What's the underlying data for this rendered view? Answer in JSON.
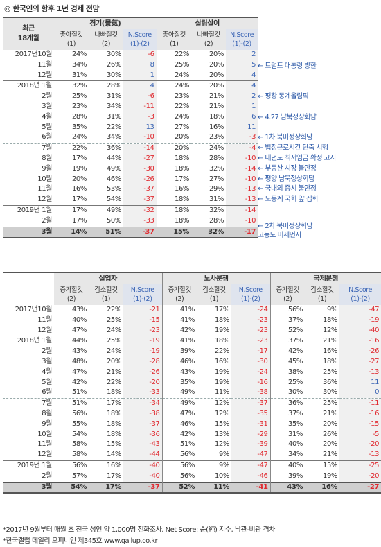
{
  "title": "◎ 한국인의 향후 1년 경제 전망",
  "top_table": {
    "corner": [
      "최근",
      "18개월"
    ],
    "groups": [
      "경기(景氣)",
      "살림살이"
    ],
    "subheads": [
      [
        "좋아질것",
        "(1)"
      ],
      [
        "나빠질것",
        "(2)"
      ],
      [
        "N.Score",
        "(1)-(2)"
      ],
      [
        "좋아질것",
        "(1)"
      ],
      [
        "나빠질것",
        "(2)"
      ],
      [
        "N.Score",
        "(1)-(2)"
      ]
    ],
    "rows": [
      {
        "label": "2017년10월",
        "v": [
          "24%",
          "30%",
          "-6",
          "22%",
          "20%",
          "2"
        ]
      },
      {
        "label": "11월",
        "v": [
          "34%",
          "26%",
          "8",
          "25%",
          "20%",
          "5"
        ]
      },
      {
        "label": "12월",
        "v": [
          "31%",
          "30%",
          "1",
          "24%",
          "20%",
          "4"
        ]
      },
      {
        "label": "2018년 1월",
        "v": [
          "32%",
          "28%",
          "4",
          "24%",
          "20%",
          "4"
        ]
      },
      {
        "label": "2월",
        "v": [
          "25%",
          "31%",
          "-6",
          "23%",
          "21%",
          "2"
        ]
      },
      {
        "label": "3월",
        "v": [
          "23%",
          "34%",
          "-11",
          "22%",
          "21%",
          "1"
        ]
      },
      {
        "label": "4월",
        "v": [
          "28%",
          "31%",
          "-3",
          "24%",
          "18%",
          "6"
        ]
      },
      {
        "label": "5월",
        "v": [
          "35%",
          "22%",
          "13",
          "27%",
          "16%",
          "11"
        ]
      },
      {
        "label": "6월",
        "v": [
          "24%",
          "34%",
          "-10",
          "20%",
          "23%",
          "-3"
        ]
      },
      {
        "label": "7월",
        "v": [
          "22%",
          "36%",
          "-14",
          "20%",
          "24%",
          "-4"
        ]
      },
      {
        "label": "8월",
        "v": [
          "17%",
          "44%",
          "-27",
          "18%",
          "28%",
          "-10"
        ]
      },
      {
        "label": "9월",
        "v": [
          "19%",
          "49%",
          "-30",
          "18%",
          "32%",
          "-14"
        ]
      },
      {
        "label": "10월",
        "v": [
          "20%",
          "46%",
          "-26",
          "17%",
          "27%",
          "-10"
        ]
      },
      {
        "label": "11월",
        "v": [
          "16%",
          "53%",
          "-37",
          "16%",
          "29%",
          "-13"
        ]
      },
      {
        "label": "12월",
        "v": [
          "17%",
          "54%",
          "-37",
          "18%",
          "31%",
          "-13"
        ]
      },
      {
        "label": "2019년 1월",
        "v": [
          "17%",
          "49%",
          "-32",
          "18%",
          "32%",
          "-14"
        ]
      },
      {
        "label": "2월",
        "v": [
          "17%",
          "50%",
          "-33",
          "18%",
          "28%",
          "-10"
        ]
      },
      {
        "label": "3월",
        "v": [
          "14%",
          "51%",
          "-37",
          "15%",
          "32%",
          "-17"
        ]
      }
    ]
  },
  "annotations": [
    {
      "text": "← 트럼프 대통령 방한",
      "row": 1,
      "cls": ""
    },
    {
      "text": "← 평창 동계올림픽",
      "row": 4,
      "cls": ""
    },
    {
      "text": "← 4.27 남북정상회담",
      "row": 6,
      "cls": ""
    },
    {
      "text": "← 1차 북미정상회담",
      "row": 8,
      "cls": ""
    },
    {
      "text": "← 법정근로시간 단축 시행",
      "row": 9,
      "cls": ""
    },
    {
      "text": "← 내년도 최저임금 확정 고시",
      "row": 10,
      "cls": ""
    },
    {
      "text": "← 부동산 시장 불안정",
      "row": 11,
      "cls": ""
    },
    {
      "text": "← 평양 남북정상회담",
      "row": 12,
      "cls": ""
    },
    {
      "text": "← 국내외 증시 불안정",
      "row": 13,
      "cls": ""
    },
    {
      "text": "← 노동계 국회 앞 집회",
      "row": 14,
      "cls": ""
    },
    {
      "text": "← 2차 북미정상회담",
      "row": 16.6,
      "cls": ""
    },
    {
      "text": "고농도 미세먼지",
      "row": 17.5,
      "cls": ""
    }
  ],
  "bottom_table": {
    "groups": [
      "실업자",
      "노사분쟁",
      "국제분쟁"
    ],
    "subheads": [
      [
        "증가할것",
        "(2)"
      ],
      [
        "감소할것",
        "(1)"
      ],
      [
        "N.Score",
        "(1)-(2)"
      ],
      [
        "증가할것",
        "(2)"
      ],
      [
        "감소할것",
        "(1)"
      ],
      [
        "N.Score",
        "(1)-(2)"
      ],
      [
        "증가할것",
        "(2)"
      ],
      [
        "감소할것",
        "(1)"
      ],
      [
        "N.Score",
        "(1)-(2)"
      ]
    ],
    "rows": [
      {
        "label": "2017년10월",
        "v": [
          "43%",
          "22%",
          "-21",
          "41%",
          "17%",
          "-24",
          "56%",
          "9%",
          "-47"
        ]
      },
      {
        "label": "11월",
        "v": [
          "40%",
          "25%",
          "-15",
          "41%",
          "18%",
          "-23",
          "37%",
          "18%",
          "-19"
        ]
      },
      {
        "label": "12월",
        "v": [
          "47%",
          "24%",
          "-23",
          "42%",
          "19%",
          "-23",
          "52%",
          "12%",
          "-40"
        ]
      },
      {
        "label": "2018년 1월",
        "v": [
          "44%",
          "25%",
          "-19",
          "41%",
          "18%",
          "-23",
          "37%",
          "21%",
          "-16"
        ]
      },
      {
        "label": "2월",
        "v": [
          "43%",
          "24%",
          "-19",
          "39%",
          "22%",
          "-17",
          "42%",
          "16%",
          "-26"
        ]
      },
      {
        "label": "3월",
        "v": [
          "48%",
          "20%",
          "-28",
          "46%",
          "16%",
          "-30",
          "45%",
          "18%",
          "-27"
        ]
      },
      {
        "label": "4월",
        "v": [
          "47%",
          "21%",
          "-26",
          "43%",
          "19%",
          "-24",
          "38%",
          "25%",
          "-13"
        ]
      },
      {
        "label": "5월",
        "v": [
          "42%",
          "22%",
          "-20",
          "35%",
          "19%",
          "-16",
          "25%",
          "36%",
          "11"
        ]
      },
      {
        "label": "6월",
        "v": [
          "51%",
          "18%",
          "-33",
          "49%",
          "11%",
          "-38",
          "30%",
          "30%",
          "0"
        ]
      },
      {
        "label": "7월",
        "v": [
          "51%",
          "17%",
          "-34",
          "49%",
          "12%",
          "-37",
          "36%",
          "25%",
          "-11"
        ]
      },
      {
        "label": "8월",
        "v": [
          "56%",
          "18%",
          "-38",
          "47%",
          "12%",
          "-35",
          "37%",
          "21%",
          "-16"
        ]
      },
      {
        "label": "9월",
        "v": [
          "55%",
          "18%",
          "-37",
          "46%",
          "15%",
          "-31",
          "35%",
          "20%",
          "-15"
        ]
      },
      {
        "label": "10월",
        "v": [
          "54%",
          "18%",
          "-36",
          "42%",
          "13%",
          "-29",
          "31%",
          "26%",
          "-5"
        ]
      },
      {
        "label": "11월",
        "v": [
          "58%",
          "15%",
          "-43",
          "51%",
          "12%",
          "-39",
          "40%",
          "20%",
          "-20"
        ]
      },
      {
        "label": "12월",
        "v": [
          "58%",
          "14%",
          "-44",
          "56%",
          "9%",
          "-47",
          "34%",
          "21%",
          "-13"
        ]
      },
      {
        "label": "2019년 1월",
        "v": [
          "56%",
          "16%",
          "-40",
          "56%",
          "9%",
          "-47",
          "40%",
          "15%",
          "-25"
        ]
      },
      {
        "label": "2월",
        "v": [
          "57%",
          "17%",
          "-40",
          "56%",
          "10%",
          "-46",
          "39%",
          "19%",
          "-20"
        ]
      },
      {
        "label": "3월",
        "v": [
          "54%",
          "17%",
          "-37",
          "52%",
          "11%",
          "-41",
          "43%",
          "16%",
          "-27"
        ]
      }
    ]
  },
  "footnotes": [
    "*2017년 9월부터 매월 초 전국 성인 약 1,000명 전화조사. Net Score: 순(純) 지수, 낙관-비관 격차",
    "*한국갤럽 데일리 오피니언 제345호 www.gallup.co.kr"
  ]
}
